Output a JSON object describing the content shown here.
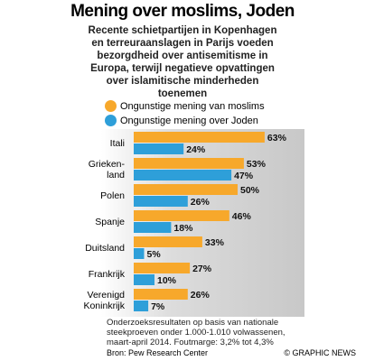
{
  "chart_data": {
    "type": "bar",
    "orientation": "horizontal",
    "title": "Mening over moslims, Joden",
    "subtitle": "Recente schietpartijen in Kopenhagen\nen terreuraanslagen in Parijs voeden\nbezorgdheid over antisemitisme in\nEuropa, terwijl negatieve opvattingen\nover islamitische minderheden\ntoenemen",
    "categories": [
      "Itali",
      "Grieken-\nland",
      "Polen",
      "Spanje",
      "Duitsland",
      "Frankrijk",
      "Verenigd\nKoninkrijk"
    ],
    "series": [
      {
        "name": "Ongunstige mening van moslims",
        "color": "#f7a82b",
        "values": [
          63,
          53,
          50,
          46,
          33,
          27,
          26
        ],
        "value_labels": [
          "63%",
          "53%",
          "50%",
          "46%",
          "33%",
          "27%",
          "26%"
        ]
      },
      {
        "name": "Ongunstige mening over Joden",
        "color": "#2e9fd9",
        "values": [
          24,
          47,
          26,
          18,
          5,
          10,
          7
        ],
        "value_labels": [
          "24%",
          "47%",
          "26%",
          "18%",
          "5%",
          "10%",
          "7%"
        ]
      }
    ],
    "note": "Onderzoeksresultaten op basis van nationale\nsteekproeven onder 1.000-1.010 volwassenen,\nmaart-april 2014. Foutmarge: 3,2% tot 4,3%",
    "source": "Bron: Pew Research Center",
    "credit": "© GRAPHIC NEWS"
  }
}
